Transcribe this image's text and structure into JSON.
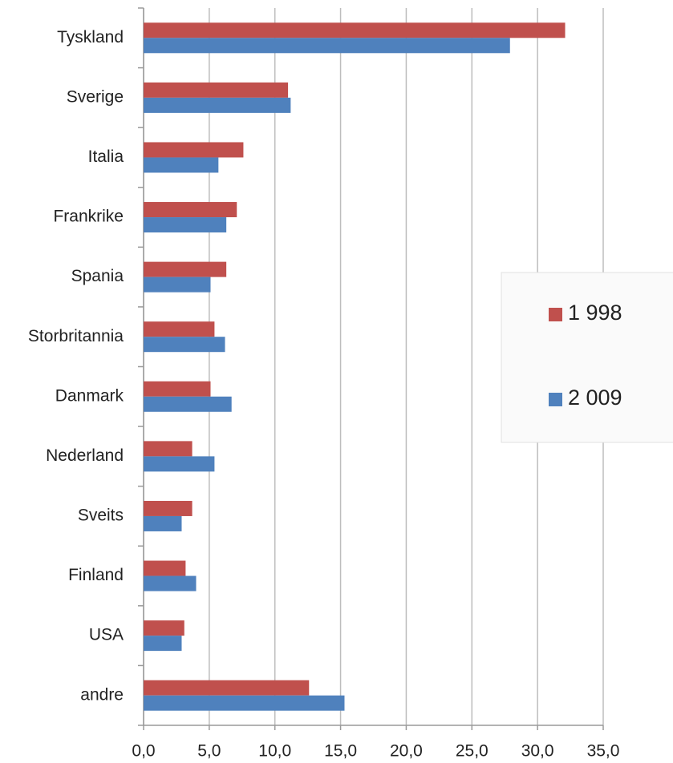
{
  "chart_data": {
    "type": "hbar",
    "categories": [
      "Tyskland",
      "Sverige",
      "Italia",
      "Frankrike",
      "Spania",
      "Storbritannia",
      "Danmark",
      "Nederland",
      "Sveits",
      "Finland",
      "USA",
      "andre"
    ],
    "series": [
      {
        "name": "1 998",
        "color": "#c0504d",
        "values": [
          32.1,
          11.0,
          7.6,
          7.1,
          6.3,
          5.4,
          5.1,
          3.7,
          3.7,
          3.2,
          3.1,
          12.6
        ]
      },
      {
        "name": "2 009",
        "color": "#4f81bd",
        "values": [
          27.9,
          11.2,
          5.7,
          6.3,
          5.1,
          6.2,
          6.7,
          5.4,
          2.9,
          4.0,
          2.9,
          15.3
        ]
      }
    ],
    "xlim": [
      0,
      35
    ],
    "xticks": [
      {
        "value": 0,
        "label": "0,0"
      },
      {
        "value": 5,
        "label": "5,0"
      },
      {
        "value": 10,
        "label": "10,0"
      },
      {
        "value": 15,
        "label": "15,0"
      },
      {
        "value": 20,
        "label": "20,0"
      },
      {
        "value": 25,
        "label": "25,0"
      },
      {
        "value": 30,
        "label": "30,0"
      },
      {
        "value": 35,
        "label": "35,0"
      }
    ],
    "grid": true,
    "legend": "right"
  }
}
